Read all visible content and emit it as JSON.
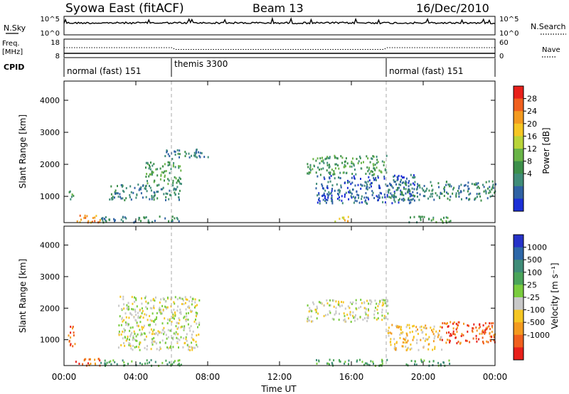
{
  "header": {
    "station": "Syowa East (fitACF)",
    "beam": "Beam 13",
    "date": "16/Dec/2010"
  },
  "nsky_panel": {
    "label": "N.Sky",
    "right_label": "N.Search",
    "left_ticks": [
      "10^5",
      "10^0"
    ],
    "right_ticks": [
      "10^5",
      "10^0"
    ]
  },
  "freq_panel": {
    "label_line1": "Freq.",
    "label_line2": "[MHz]",
    "left_ticks": [
      "18",
      "8"
    ],
    "right_ticks": [
      "60",
      "0"
    ],
    "right_label": "Nave"
  },
  "cpid_panel": {
    "label": "CPID",
    "modes": [
      {
        "name": "normal (fast) 151",
        "start_hour": 0
      },
      {
        "name": "themis 3300",
        "start_hour": 6
      },
      {
        "name": "normal (fast) 151",
        "start_hour": 18
      }
    ]
  },
  "axes": {
    "ylabel": "Slant Range [km]",
    "yticks": [
      "4000",
      "3000",
      "2000",
      "1000"
    ],
    "xlabel": "Time UT",
    "xticks": [
      "00:00",
      "04:00",
      "08:00",
      "12:00",
      "16:00",
      "20:00",
      "00:00"
    ]
  },
  "power_colorbar": {
    "label": "Power [dB]",
    "ticks": [
      "28",
      "24",
      "20",
      "16",
      "12",
      "8",
      "4"
    ],
    "colors": [
      "#e8201a",
      "#f0601e",
      "#f39a1f",
      "#f5c623",
      "#b9d438",
      "#69b447",
      "#3c8f4a",
      "#3f8c78",
      "#2f62a4",
      "#1c2fd6"
    ]
  },
  "velocity_colorbar": {
    "label": "Velocity [m s⁻¹]",
    "ticks": [
      "1000",
      "500",
      "100",
      "25",
      "-25",
      "-100",
      "-500",
      "-1000"
    ],
    "colors": [
      "#2632c8",
      "#2d67a8",
      "#3f8c78",
      "#4aa45a",
      "#7acc3e",
      "#c8c8c8",
      "#f5c623",
      "#f39a1f",
      "#f0601e",
      "#e8201a"
    ]
  },
  "chart_data": [
    {
      "type": "heatmap",
      "title": "Power",
      "xlabel": "Time UT",
      "ylabel": "Slant Range [km]",
      "x_range_hours": [
        0,
        24
      ],
      "ylim": [
        180,
        4600
      ],
      "colorbar_label": "Power [dB]",
      "colorbar_ticks": [
        28,
        24,
        20,
        16,
        12,
        8,
        4
      ],
      "echo_regions": [
        {
          "t0": 0.2,
          "t1": 0.5,
          "r0": 900,
          "r1": 1300,
          "value_db": 10
        },
        {
          "t0": 0.5,
          "t1": 2.0,
          "r0": 200,
          "r1": 450,
          "value_db": 26
        },
        {
          "t0": 2.0,
          "t1": 6.5,
          "r0": 200,
          "r1": 400,
          "value_db": 8
        },
        {
          "t0": 2.5,
          "t1": 6.5,
          "r0": 900,
          "r1": 1400,
          "value_db": 6
        },
        {
          "t0": 4.5,
          "t1": 6.5,
          "r0": 1400,
          "r1": 2100,
          "value_db": 12
        },
        {
          "t0": 5.5,
          "t1": 8.0,
          "r0": 2200,
          "r1": 2500,
          "value_db": 6
        },
        {
          "t0": 13.5,
          "t1": 18.0,
          "r0": 1700,
          "r1": 2300,
          "value_db": 12
        },
        {
          "t0": 14.0,
          "t1": 19.5,
          "r0": 800,
          "r1": 1700,
          "value_db": 5
        },
        {
          "t0": 15.0,
          "t1": 15.8,
          "r0": 200,
          "r1": 400,
          "value_db": 20
        },
        {
          "t0": 18.0,
          "t1": 24.0,
          "r0": 900,
          "r1": 1500,
          "value_db": 6
        },
        {
          "t0": 19.0,
          "t1": 21.5,
          "r0": 200,
          "r1": 400,
          "value_db": 12
        }
      ]
    },
    {
      "type": "heatmap",
      "title": "Velocity",
      "xlabel": "Time UT",
      "ylabel": "Slant Range [km]",
      "x_range_hours": [
        0,
        24
      ],
      "ylim": [
        180,
        4600
      ],
      "colorbar_label": "Velocity [m s⁻¹]",
      "colorbar_ticks": [
        1000,
        500,
        100,
        25,
        -25,
        -100,
        -500,
        -1000
      ],
      "echo_regions": [
        {
          "t0": 0.2,
          "t1": 0.6,
          "r0": 800,
          "r1": 1500,
          "value_ms": -300
        },
        {
          "t0": 0.5,
          "t1": 2.0,
          "r0": 200,
          "r1": 450,
          "value_ms": -400
        },
        {
          "t0": 2.0,
          "t1": 6.5,
          "r0": 200,
          "r1": 400,
          "value_ms": 60
        },
        {
          "t0": 3.0,
          "t1": 7.5,
          "r0": 700,
          "r1": 2400,
          "value_ms": 0
        },
        {
          "t0": 13.5,
          "t1": 18.0,
          "r0": 1600,
          "r1": 2300,
          "value_ms": 0
        },
        {
          "t0": 14.0,
          "t1": 18.0,
          "r0": 200,
          "r1": 400,
          "value_ms": 60
        },
        {
          "t0": 18.0,
          "t1": 21.0,
          "r0": 700,
          "r1": 1500,
          "value_ms": -60
        },
        {
          "t0": 21.0,
          "t1": 24.0,
          "r0": 900,
          "r1": 1600,
          "value_ms": -400
        },
        {
          "t0": 19.0,
          "t1": 21.5,
          "r0": 200,
          "r1": 400,
          "value_ms": 40
        }
      ]
    }
  ]
}
